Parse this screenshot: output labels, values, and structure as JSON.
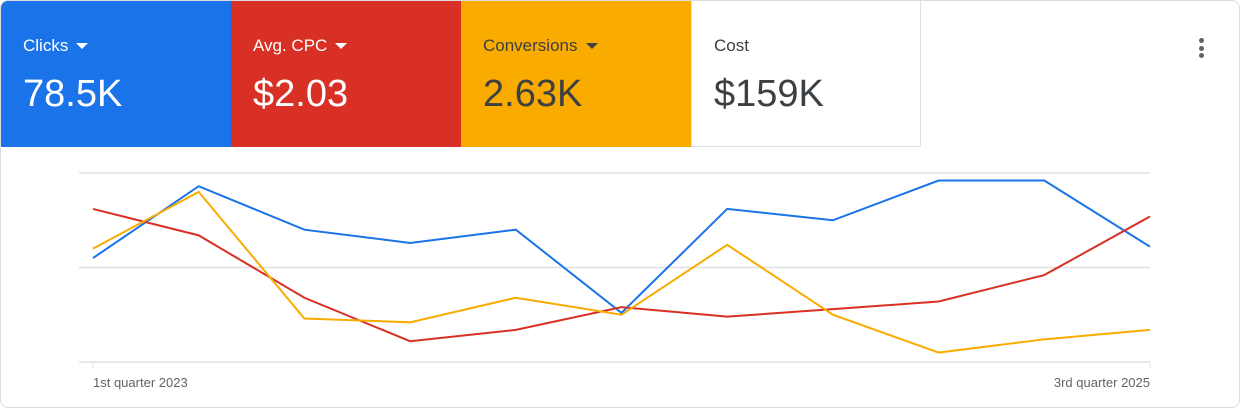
{
  "tiles": [
    {
      "label": "Clicks",
      "value": "78.5K",
      "dropdown": true
    },
    {
      "label": "Avg. CPC",
      "value": "$2.03",
      "dropdown": true
    },
    {
      "label": "Conversions",
      "value": "2.63K",
      "dropdown": true
    },
    {
      "label": "Cost",
      "value": "$159K",
      "dropdown": false
    }
  ],
  "menu_icon": "more-vert-icon",
  "chart_data": {
    "type": "line",
    "x": [
      0,
      1,
      2,
      3,
      4,
      5,
      6,
      7,
      8,
      9,
      10
    ],
    "x_labels": [
      "1st quarter 2023",
      "3rd quarter 2025"
    ],
    "ylim": [
      0,
      100
    ],
    "grid": true,
    "note": "values normalized per series (no y-axis labels shown)",
    "series": [
      {
        "name": "Clicks",
        "color": "#1a73e8",
        "values": [
          55,
          93,
          70,
          63,
          70,
          26,
          81,
          75,
          96,
          96,
          61
        ]
      },
      {
        "name": "Avg. CPC",
        "color": "#d93025",
        "values": [
          81,
          67,
          34,
          11,
          17,
          29,
          24,
          28,
          32,
          46,
          77
        ]
      },
      {
        "name": "Conversions",
        "color": "#f9ab00",
        "values": [
          60,
          90,
          23,
          21,
          34,
          25,
          62,
          25,
          5,
          12,
          17
        ]
      }
    ]
  }
}
